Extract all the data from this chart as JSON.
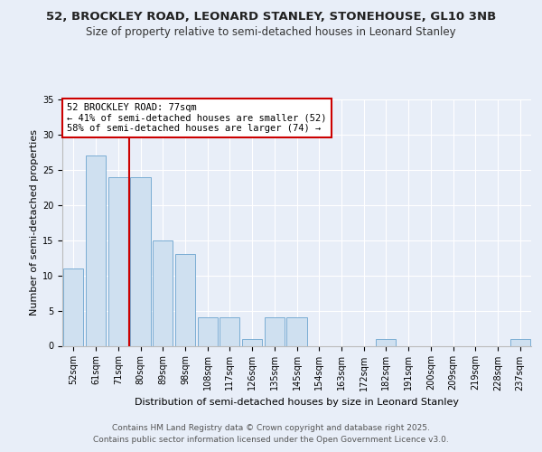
{
  "title": "52, BROCKLEY ROAD, LEONARD STANLEY, STONEHOUSE, GL10 3NB",
  "subtitle": "Size of property relative to semi-detached houses in Leonard Stanley",
  "xlabel": "Distribution of semi-detached houses by size in Leonard Stanley",
  "ylabel": "Number of semi-detached properties",
  "categories": [
    "52sqm",
    "61sqm",
    "71sqm",
    "80sqm",
    "89sqm",
    "98sqm",
    "108sqm",
    "117sqm",
    "126sqm",
    "135sqm",
    "145sqm",
    "154sqm",
    "163sqm",
    "172sqm",
    "182sqm",
    "191sqm",
    "200sqm",
    "209sqm",
    "219sqm",
    "228sqm",
    "237sqm"
  ],
  "values": [
    11,
    27,
    24,
    24,
    15,
    13,
    4,
    4,
    1,
    4,
    4,
    0,
    0,
    0,
    1,
    0,
    0,
    0,
    0,
    0,
    1
  ],
  "bar_color": "#cfe0f0",
  "bar_edge_color": "#7aadd4",
  "redline_x": 2.5,
  "redline_label": "52 BROCKLEY ROAD: 77sqm",
  "annotation_smaller": "← 41% of semi-detached houses are smaller (52)",
  "annotation_larger": "58% of semi-detached houses are larger (74) →",
  "ylim": [
    0,
    35
  ],
  "yticks": [
    0,
    5,
    10,
    15,
    20,
    25,
    30,
    35
  ],
  "footer1": "Contains HM Land Registry data © Crown copyright and database right 2025.",
  "footer2": "Contains public sector information licensed under the Open Government Licence v3.0.",
  "bg_color": "#e8eef8",
  "plot_bg_color": "#e8eef8",
  "grid_color": "#ffffff",
  "title_fontsize": 9.5,
  "subtitle_fontsize": 8.5,
  "label_fontsize": 8,
  "tick_fontsize": 7,
  "footer_fontsize": 6.5
}
